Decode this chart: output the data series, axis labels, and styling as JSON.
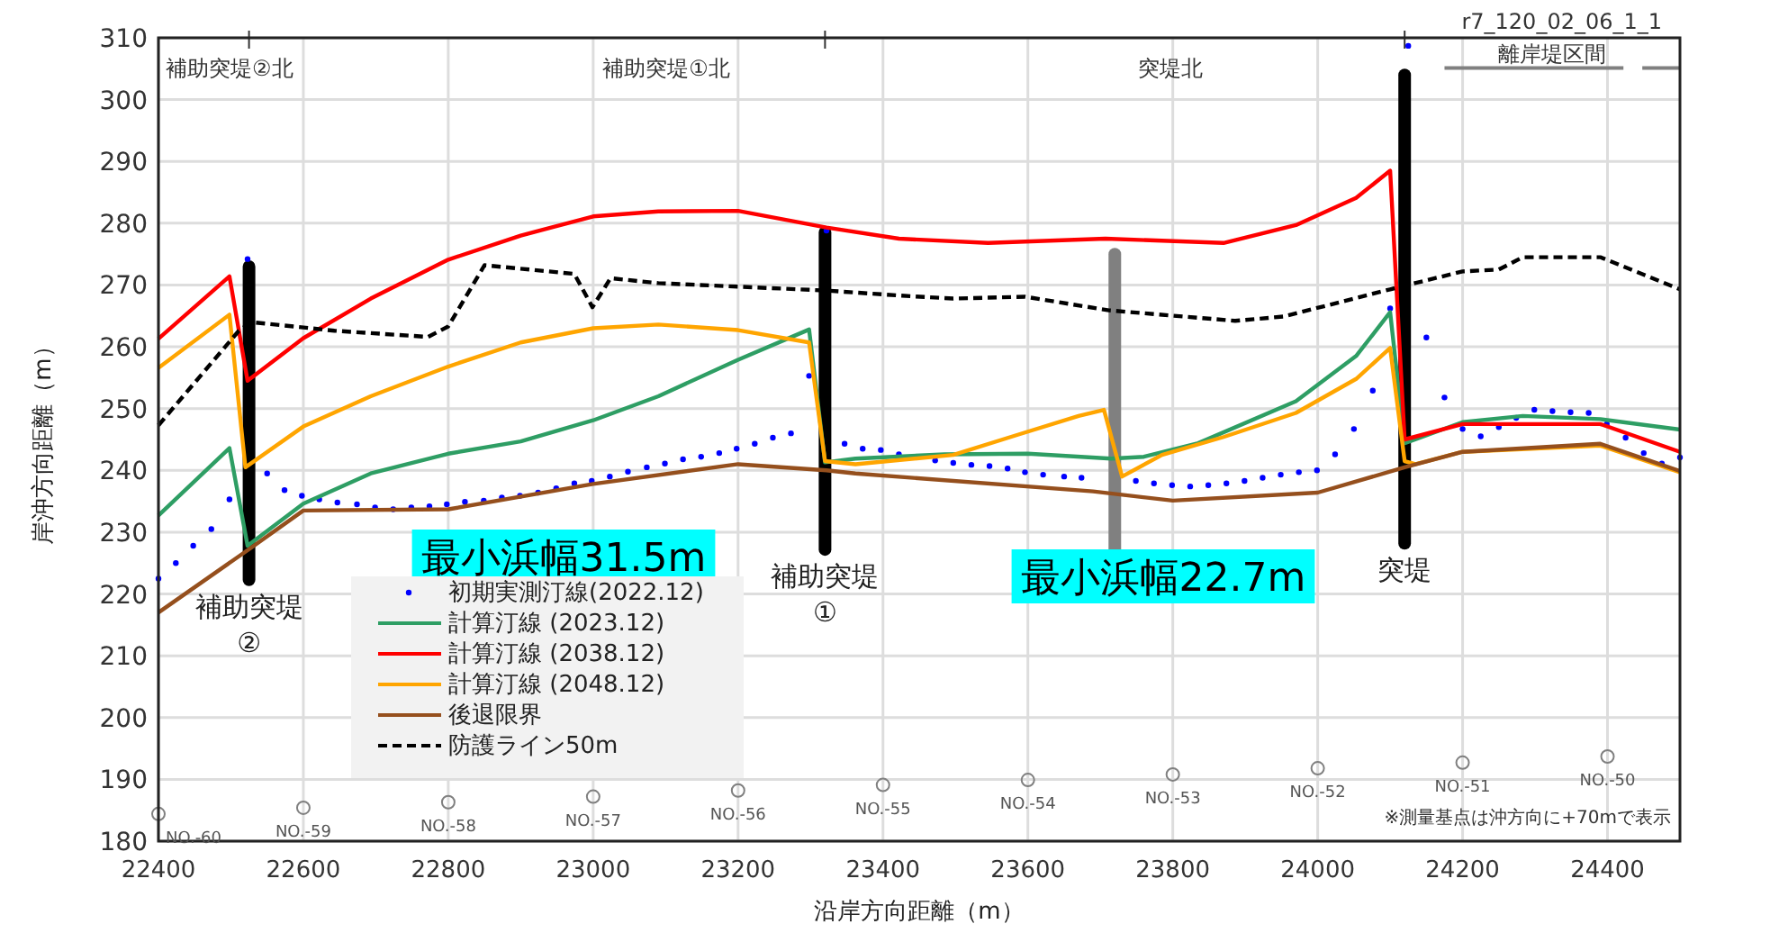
{
  "chart_data": {
    "type": "line",
    "xlabel": "沿岸方向距離（m）",
    "ylabel": "岸沖方向距離（m）",
    "xlim": [
      22400,
      24500
    ],
    "ylim": [
      180,
      310
    ],
    "xticks": [
      22400,
      22600,
      22800,
      23000,
      23200,
      23400,
      23600,
      23800,
      24000,
      24200,
      24400
    ],
    "yticks": [
      180,
      190,
      200,
      210,
      220,
      230,
      240,
      250,
      260,
      270,
      280,
      290,
      300,
      310
    ],
    "grid": true,
    "legend": "bottom left",
    "series": [
      {
        "name": "初期実測汀線(2022.12)",
        "type": "scatter",
        "marker": "circle",
        "color": "#0000ff",
        "x": [
          22400,
          22424,
          22448,
          22473,
          22498,
          22523,
          22550,
          22574,
          22598,
          22622,
          22647,
          22674,
          22699,
          22724,
          22749,
          22774,
          22798,
          22823,
          22849,
          22874,
          22899,
          22924,
          22949,
          22974,
          22998,
          23023,
          23048,
          23074,
          23099,
          23124,
          23149,
          23174,
          23198,
          23223,
          23248,
          23273,
          23298,
          23322,
          23347,
          23372,
          23397,
          23422,
          23472,
          23497,
          23522,
          23547,
          23572,
          23596,
          23621,
          23650,
          23674,
          23749,
          23774,
          23799,
          23824,
          23849,
          23874,
          23899,
          23924,
          23949,
          23974,
          23999,
          24024,
          24050,
          24076,
          24100,
          24125,
          24150,
          24175,
          24200,
          24225,
          24250,
          24274,
          24299,
          24324,
          24349,
          24374,
          24399,
          24425,
          24450,
          24475,
          24500
        ],
        "values": [
          222.5,
          225,
          227.8,
          230.5,
          235.3,
          274.2,
          239.5,
          236.8,
          235.9,
          235.3,
          234.8,
          234.5,
          234,
          233.7,
          234,
          234.2,
          234.5,
          234.9,
          235.1,
          235.6,
          235.9,
          236.4,
          237.1,
          237.9,
          238.3,
          239,
          239.8,
          240.5,
          241.1,
          241.8,
          242.2,
          242.8,
          243.5,
          244.3,
          245.3,
          246,
          255.3,
          278.8,
          244.3,
          243.5,
          243.3,
          242.6,
          241.6,
          241.2,
          240.9,
          240.7,
          240.3,
          239.7,
          239.3,
          239,
          238.8,
          238.3,
          237.9,
          237.6,
          237.4,
          237.6,
          237.9,
          238.3,
          238.8,
          239.3,
          239.7,
          240,
          242.6,
          246.7,
          252.9,
          266.2,
          308.7,
          261.5,
          251.8,
          246.7,
          245.5,
          247,
          248.5,
          249.8,
          249.6,
          249.4,
          249.3,
          247.5,
          245.3,
          242.8,
          241.1,
          242.1
        ]
      },
      {
        "name": "計算汀線 (2023.12)",
        "color": "#2e9e64",
        "x": [
          22400,
          22498,
          22523,
          22600,
          22693,
          22800,
          22900,
          23000,
          23090,
          23200,
          23298,
          23320,
          23362,
          23485,
          23600,
          23715,
          23760,
          23835,
          23970,
          24053,
          24100,
          24120,
          24200,
          24283,
          24390,
          24500
        ],
        "values": [
          232.7,
          243.6,
          227.8,
          234.6,
          239.5,
          242.7,
          244.7,
          248.1,
          252,
          257.9,
          262.8,
          241.3,
          241.9,
          242.6,
          242.7,
          241.9,
          242.2,
          244.4,
          251.2,
          258.5,
          265.6,
          244.4,
          247.8,
          248.8,
          248.3,
          246.6
        ]
      },
      {
        "name": "計算汀線 (2038.12)",
        "color": "#ff0000",
        "x": [
          22400,
          22498,
          22523,
          22600,
          22693,
          22800,
          22900,
          23000,
          23090,
          23200,
          23322,
          23422,
          23545,
          23707,
          23870,
          23970,
          24053,
          24100,
          24120,
          24200,
          24283,
          24390,
          24500
        ],
        "values": [
          261.3,
          271.4,
          254.5,
          261.4,
          267.8,
          274.1,
          278,
          281.1,
          281.9,
          282,
          279.3,
          277.5,
          276.8,
          277.5,
          276.8,
          279.7,
          284.1,
          288.5,
          245,
          247.5,
          247.5,
          247.5,
          243
        ]
      },
      {
        "name": "計算汀線 (2048.12)",
        "color": "#ffa500",
        "x": [
          22400,
          22498,
          22520,
          22600,
          22693,
          22800,
          22900,
          23000,
          23090,
          23200,
          23298,
          23320,
          23362,
          23497,
          23587,
          23670,
          23705,
          23730,
          23785,
          23870,
          23970,
          24053,
          24100,
          24120,
          24135,
          24200,
          24390,
          24500
        ],
        "values": [
          256.6,
          265.2,
          240.5,
          247.1,
          252,
          256.8,
          260.7,
          263,
          263.6,
          262.7,
          260.7,
          241.5,
          241,
          242.5,
          245.8,
          248.8,
          249.8,
          239,
          242.5,
          245.4,
          249.3,
          254.8,
          259.8,
          241.5,
          241,
          243,
          244,
          239.7
        ]
      },
      {
        "name": "後退限界",
        "color": "#954f1d",
        "x": [
          22400,
          22527,
          22600,
          22800,
          23000,
          23200,
          23322,
          23362,
          23690,
          23800,
          24000,
          24120,
          24200,
          24390,
          24500
        ],
        "values": [
          217,
          227.4,
          233.5,
          233.7,
          237.8,
          241,
          240,
          239.5,
          236.6,
          235.1,
          236.4,
          240.5,
          243,
          244.3,
          239.9
        ]
      },
      {
        "name": "防護ライン50m",
        "line_style": "dashed",
        "color": "#000000",
        "x": [
          22400,
          22511,
          22528,
          22643,
          22772,
          22800,
          22850,
          22974,
          22999,
          23024,
          23090,
          23322,
          23422,
          23497,
          23596,
          23712,
          23886,
          23953,
          24100,
          24200,
          24250,
          24283,
          24390,
          24500
        ],
        "values": [
          247.3,
          262.6,
          264,
          262.6,
          261.6,
          263.3,
          273.2,
          271.8,
          266.4,
          271.1,
          270.3,
          269.1,
          268.3,
          267.8,
          268.1,
          265.9,
          264.2,
          264.9,
          269.3,
          272.2,
          272.5,
          274.5,
          274.5,
          269.3
        ]
      },
      {
        "type": "line",
        "color": "#000000",
        "x": [
          22525,
          22525
        ],
        "values": [
          273,
          222.3
        ]
      },
      {
        "type": "line",
        "color": "#000000",
        "x": [
          23320,
          23320
        ],
        "values": [
          278.5,
          227.2
        ]
      },
      {
        "type": "line",
        "color": "#000000",
        "x": [
          24120,
          24120
        ],
        "values": [
          304,
          228.2
        ]
      },
      {
        "type": "line",
        "color": "#808080",
        "x": [
          23720,
          23720
        ],
        "values": [
          275,
          227
        ]
      },
      {
        "type": "line",
        "color": "#808080",
        "x": [
          24175,
          24422
        ],
        "values": [
          305.1,
          305.1
        ]
      },
      {
        "type": "line",
        "color": "#808080",
        "x": [
          24448,
          24500
        ],
        "values": [
          305.1,
          305.1
        ]
      },
      {
        "type": "scatter",
        "marker": "circle",
        "color": "#808080",
        "x": [
          22400,
          22600,
          22800,
          23000,
          23200,
          23400,
          23600,
          23800,
          24000,
          24200,
          24400
        ],
        "values": [
          184.4,
          185.4,
          186.3,
          187.2,
          188.2,
          189.1,
          189.9,
          190.8,
          191.8,
          192.7,
          193.7
        ]
      }
    ],
    "annotations": [
      {
        "text": "補助突堤\n②",
        "x": 22525,
        "y": 222.3
      },
      {
        "text": "補助突堤\n①",
        "x": 23320,
        "y": 227.2
      },
      {
        "text": "突堤",
        "x": 24120,
        "y": 228.2
      },
      {
        "text": "NO.-60",
        "x": 22400,
        "y": 184.4
      },
      {
        "text": "NO.-59",
        "x": 22600,
        "y": 185.4
      },
      {
        "text": "NO.-58",
        "x": 22800,
        "y": 186.3
      },
      {
        "text": "NO.-57",
        "x": 23000,
        "y": 187.2
      },
      {
        "text": "NO.-56",
        "x": 23200,
        "y": 188.2
      },
      {
        "text": "NO.-55",
        "x": 23400,
        "y": 189.1
      },
      {
        "text": "NO.-54",
        "x": 23600,
        "y": 189.9
      },
      {
        "text": "NO.-53",
        "x": 23800,
        "y": 190.8
      },
      {
        "text": "NO.-52",
        "x": 24000,
        "y": 191.8
      },
      {
        "text": "NO.-51",
        "x": 24200,
        "y": 192.7
      },
      {
        "text": "NO.-50",
        "x": 24400,
        "y": 193.7
      },
      "補助突堤②北",
      "補助突堤①北",
      "突堤北",
      "離岸堤区間",
      "最小浜幅31.5m",
      "最小浜幅22.7m",
      "r7_120_02_06_1_1",
      "※測量基点は沖方向に+70mで表示"
    ]
  }
}
